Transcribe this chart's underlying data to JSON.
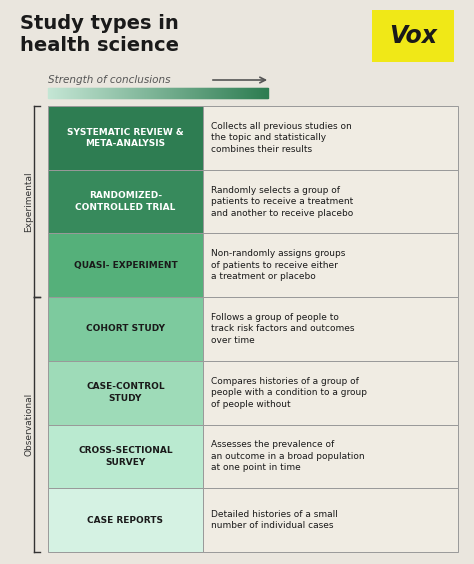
{
  "title_line1": "Study types in",
  "title_line2": "health science",
  "subtitle": "Strength of conclusions",
  "bg_color": "#eae6de",
  "title_color": "#1a1a1a",
  "vox_bg": "#f0e817",
  "vox_text": "#1a1a1a",
  "rows": [
    {
      "name": "SYSTEMATIC REVIEW &\nMETA-ANALYSIS",
      "description": "Collects all previous studies on\nthe topic and statistically\ncombines their results",
      "left_color": "#2e7d52",
      "text_color": "#ffffff"
    },
    {
      "name": "RANDOMIZED-\nCONTROLLED TRIAL",
      "description": "Randomly selects a group of\npatients to receive a treatment\nand another to receive placebo",
      "left_color": "#378a5c",
      "text_color": "#ffffff"
    },
    {
      "name": "QUASI- EXPERIMENT",
      "description": "Non-randomly assigns groups\nof patients to receive either\na treatment or placebo",
      "left_color": "#55b07a",
      "text_color": "#1a1a1a"
    },
    {
      "name": "COHORT STUDY",
      "description": "Follows a group of people to\ntrack risk factors and outcomes\nover time",
      "left_color": "#7dca9e",
      "text_color": "#1a1a1a"
    },
    {
      "name": "CASE-CONTROL\nSTUDY",
      "description": "Compares histories of a group of\npeople with a condition to a group\nof people without",
      "left_color": "#9edbb8",
      "text_color": "#1a1a1a"
    },
    {
      "name": "CROSS-SECTIONAL\nSURVEY",
      "description": "Assesses the prevalence of\nan outcome in a broad population\nat one point in time",
      "left_color": "#baead0",
      "text_color": "#1a1a1a"
    },
    {
      "name": "CASE REPORTS",
      "description": "Detailed histories of a small\nnumber of individual cases",
      "left_color": "#d5f2e3",
      "text_color": "#1a1a1a"
    }
  ],
  "experimental_rows": [
    0,
    1,
    2
  ],
  "observational_rows": [
    3,
    4,
    5,
    6
  ],
  "right_col_bg": "#f0ece3",
  "border_color": "#999999",
  "grad_start": "#c5e6d5",
  "grad_end": "#2e7d52"
}
